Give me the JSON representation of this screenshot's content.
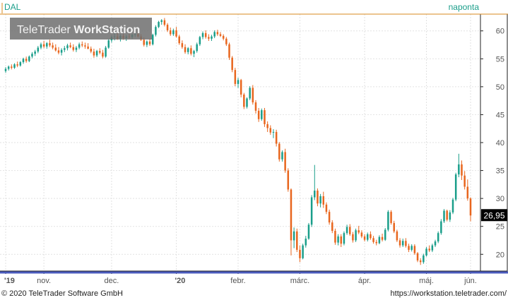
{
  "chart_data": {
    "type": "candlestick",
    "symbol": "DAL",
    "interval": "naponta",
    "watermark": {
      "brand": "TeleTrader",
      "product": "WorkStation"
    },
    "last_price_label": "26,95",
    "ylim": [
      17,
      63
    ],
    "y_ticks": [
      20,
      25,
      30,
      35,
      40,
      45,
      50,
      55,
      60
    ],
    "x_ticks": [
      "'19",
      "nov.",
      "dec.",
      "'20",
      "febr.",
      "márc.",
      "ápr.",
      "máj.",
      "jún."
    ],
    "colors": {
      "up": "#1a9e8a",
      "down": "#e8661e",
      "last": "#000000",
      "accent": "#d88a1c"
    },
    "candles": [
      [
        52.8,
        53.5,
        52.5,
        53.2
      ],
      [
        53.2,
        53.8,
        52.9,
        53.6
      ],
      [
        53.6,
        54.0,
        53.1,
        53.4
      ],
      [
        53.4,
        54.2,
        53.2,
        54.0
      ],
      [
        54.0,
        54.5,
        53.5,
        53.8
      ],
      [
        53.8,
        54.6,
        53.6,
        54.4
      ],
      [
        54.4,
        55.2,
        54.1,
        55.0
      ],
      [
        55.0,
        55.4,
        54.3,
        54.6
      ],
      [
        54.6,
        55.6,
        54.4,
        55.4
      ],
      [
        55.4,
        56.2,
        55.1,
        55.9
      ],
      [
        55.9,
        56.6,
        55.5,
        56.3
      ],
      [
        56.3,
        57.3,
        56.0,
        57.0
      ],
      [
        57.0,
        57.9,
        56.7,
        57.6
      ],
      [
        57.6,
        58.2,
        56.9,
        57.2
      ],
      [
        57.2,
        58.0,
        56.8,
        57.8
      ],
      [
        57.8,
        58.4,
        57.1,
        57.4
      ],
      [
        57.4,
        57.9,
        56.7,
        57.0
      ],
      [
        57.0,
        57.6,
        56.3,
        56.5
      ],
      [
        56.5,
        57.1,
        55.8,
        56.1
      ],
      [
        56.1,
        56.9,
        55.6,
        56.6
      ],
      [
        56.6,
        57.3,
        56.2,
        56.9
      ],
      [
        56.9,
        57.7,
        56.5,
        57.4
      ],
      [
        57.4,
        57.9,
        56.9,
        57.1
      ],
      [
        57.1,
        57.6,
        56.3,
        56.6
      ],
      [
        56.6,
        57.3,
        56.2,
        57.0
      ],
      [
        57.0,
        57.9,
        56.7,
        57.6
      ],
      [
        57.6,
        58.1,
        57.1,
        57.4
      ],
      [
        57.4,
        57.9,
        56.8,
        57.2
      ],
      [
        57.2,
        57.8,
        56.7,
        56.8
      ],
      [
        56.8,
        57.2,
        56.0,
        56.3
      ],
      [
        56.3,
        56.8,
        55.2,
        55.6
      ],
      [
        55.6,
        56.6,
        55.3,
        56.4
      ],
      [
        56.4,
        56.9,
        55.8,
        56.1
      ],
      [
        56.1,
        56.6,
        55.1,
        55.4
      ],
      [
        55.4,
        57.3,
        55.2,
        57.0
      ],
      [
        57.0,
        58.6,
        56.8,
        58.3
      ],
      [
        58.3,
        59.2,
        57.9,
        58.9
      ],
      [
        58.9,
        59.6,
        58.3,
        59.0
      ],
      [
        59.0,
        59.6,
        58.4,
        58.6
      ],
      [
        58.6,
        59.4,
        58.1,
        59.1
      ],
      [
        59.1,
        59.5,
        58.4,
        58.7
      ],
      [
        58.7,
        59.3,
        58.2,
        59.0
      ],
      [
        59.0,
        59.5,
        58.6,
        58.9
      ],
      [
        58.9,
        59.5,
        58.6,
        59.3
      ],
      [
        59.3,
        59.8,
        58.9,
        59.4
      ],
      [
        59.4,
        59.9,
        58.8,
        59.0
      ],
      [
        59.0,
        59.4,
        58.2,
        58.4
      ],
      [
        58.4,
        58.8,
        57.2,
        57.5
      ],
      [
        57.5,
        58.3,
        57.1,
        58.1
      ],
      [
        58.1,
        58.6,
        57.3,
        57.6
      ],
      [
        57.6,
        59.5,
        57.4,
        59.3
      ],
      [
        59.3,
        61.0,
        59.0,
        60.7
      ],
      [
        60.7,
        61.8,
        60.5,
        61.6
      ],
      [
        61.6,
        62.1,
        61.1,
        61.9
      ],
      [
        61.9,
        62.3,
        60.8,
        61.1
      ],
      [
        61.1,
        61.4,
        59.8,
        60.1
      ],
      [
        60.1,
        60.6,
        59.1,
        59.4
      ],
      [
        59.4,
        60.4,
        59.1,
        60.1
      ],
      [
        60.1,
        60.7,
        58.8,
        59.0
      ],
      [
        59.0,
        59.3,
        57.5,
        57.8
      ],
      [
        57.8,
        58.3,
        56.8,
        57.1
      ],
      [
        57.1,
        57.6,
        55.9,
        56.2
      ],
      [
        56.2,
        57.1,
        55.8,
        56.9
      ],
      [
        56.9,
        57.4,
        55.6,
        55.9
      ],
      [
        55.9,
        56.6,
        55.3,
        56.4
      ],
      [
        56.4,
        57.9,
        56.1,
        57.6
      ],
      [
        57.6,
        59.1,
        57.3,
        58.9
      ],
      [
        58.9,
        59.9,
        58.5,
        59.6
      ],
      [
        59.6,
        60.1,
        58.6,
        58.9
      ],
      [
        58.9,
        59.4,
        58.2,
        58.6
      ],
      [
        58.6,
        59.3,
        58.2,
        59.0
      ],
      [
        59.0,
        60.1,
        58.7,
        59.8
      ],
      [
        59.8,
        60.2,
        59.1,
        59.4
      ],
      [
        59.4,
        59.8,
        58.9,
        59.1
      ],
      [
        59.1,
        59.4,
        58.3,
        58.6
      ],
      [
        58.6,
        58.9,
        57.3,
        57.6
      ],
      [
        57.6,
        57.9,
        54.8,
        55.2
      ],
      [
        55.2,
        55.5,
        52.6,
        53.0
      ],
      [
        53.0,
        53.4,
        50.1,
        50.5
      ],
      [
        50.5,
        51.6,
        49.8,
        51.2
      ],
      [
        51.2,
        51.4,
        48.1,
        48.6
      ],
      [
        48.6,
        48.9,
        46.0,
        46.4
      ],
      [
        46.4,
        48.1,
        46.1,
        47.9
      ],
      [
        47.9,
        50.1,
        47.6,
        49.8
      ],
      [
        49.8,
        50.3,
        46.8,
        47.2
      ],
      [
        47.2,
        47.6,
        45.2,
        45.7
      ],
      [
        45.7,
        46.2,
        43.7,
        44.2
      ],
      [
        44.2,
        46.1,
        43.9,
        45.8
      ],
      [
        45.8,
        46.2,
        42.8,
        43.3
      ],
      [
        43.3,
        43.8,
        41.9,
        42.6
      ],
      [
        42.6,
        43.1,
        41.4,
        41.8
      ],
      [
        41.8,
        42.4,
        40.8,
        41.9
      ],
      [
        41.9,
        42.3,
        39.3,
        39.8
      ],
      [
        39.8,
        40.1,
        36.6,
        37.0
      ],
      [
        37.0,
        38.6,
        36.6,
        38.3
      ],
      [
        38.3,
        38.9,
        34.6,
        35.0
      ],
      [
        35.0,
        35.4,
        31.2,
        31.6
      ],
      [
        31.6,
        31.8,
        19.8,
        22.5
      ],
      [
        22.5,
        24.8,
        21.1,
        24.1
      ],
      [
        24.1,
        24.6,
        20.4,
        20.8
      ],
      [
        20.8,
        21.6,
        18.6,
        19.3
      ],
      [
        19.3,
        21.9,
        19.1,
        21.6
      ],
      [
        21.6,
        23.3,
        21.2,
        22.8
      ],
      [
        22.8,
        25.6,
        22.6,
        25.3
      ],
      [
        25.3,
        30.6,
        24.9,
        30.2
      ],
      [
        30.2,
        36.0,
        29.7,
        31.4
      ],
      [
        31.4,
        31.8,
        28.6,
        29.1
      ],
      [
        29.1,
        30.8,
        28.4,
        30.4
      ],
      [
        30.4,
        31.2,
        28.3,
        28.9
      ],
      [
        28.9,
        29.3,
        27.2,
        27.6
      ],
      [
        27.6,
        28.0,
        25.3,
        25.7
      ],
      [
        25.7,
        26.1,
        23.8,
        24.2
      ],
      [
        24.2,
        24.6,
        21.7,
        22.1
      ],
      [
        22.1,
        23.6,
        21.6,
        23.2
      ],
      [
        23.2,
        23.6,
        21.3,
        21.9
      ],
      [
        21.9,
        24.1,
        21.6,
        23.8
      ],
      [
        23.8,
        25.3,
        23.5,
        24.9
      ],
      [
        24.9,
        25.4,
        23.3,
        23.6
      ],
      [
        23.6,
        24.0,
        22.1,
        22.5
      ],
      [
        22.5,
        24.6,
        22.2,
        24.3
      ],
      [
        24.3,
        25.1,
        23.6,
        23.9
      ],
      [
        23.9,
        24.3,
        22.9,
        23.2
      ],
      [
        23.2,
        23.6,
        22.3,
        22.6
      ],
      [
        22.6,
        23.9,
        22.3,
        23.6
      ],
      [
        23.6,
        24.1,
        22.6,
        22.9
      ],
      [
        22.9,
        23.3,
        21.9,
        22.2
      ],
      [
        22.2,
        22.6,
        21.6,
        22.0
      ],
      [
        22.0,
        23.4,
        21.8,
        23.1
      ],
      [
        23.1,
        23.7,
        22.3,
        22.6
      ],
      [
        22.6,
        24.7,
        22.4,
        24.4
      ],
      [
        24.4,
        27.9,
        24.1,
        27.6
      ],
      [
        27.6,
        27.9,
        25.3,
        25.6
      ],
      [
        25.6,
        26.0,
        23.8,
        24.1
      ],
      [
        24.1,
        24.4,
        22.2,
        22.5
      ],
      [
        22.5,
        22.9,
        21.2,
        21.6
      ],
      [
        21.6,
        22.8,
        21.3,
        22.4
      ],
      [
        22.4,
        22.9,
        21.2,
        21.5
      ],
      [
        21.5,
        21.9,
        20.4,
        20.8
      ],
      [
        20.8,
        21.8,
        20.5,
        21.5
      ],
      [
        21.5,
        21.8,
        19.9,
        20.2
      ],
      [
        20.2,
        20.4,
        18.6,
        18.9
      ],
      [
        18.9,
        19.3,
        18.1,
        18.6
      ],
      [
        18.6,
        20.1,
        18.3,
        19.8
      ],
      [
        19.8,
        21.3,
        19.6,
        21.0
      ],
      [
        21.0,
        21.6,
        20.4,
        20.7
      ],
      [
        20.7,
        21.9,
        20.4,
        21.6
      ],
      [
        21.6,
        22.6,
        21.3,
        22.3
      ],
      [
        22.3,
        24.1,
        22.0,
        23.8
      ],
      [
        23.8,
        26.3,
        23.5,
        25.9
      ],
      [
        25.9,
        28.1,
        25.6,
        27.8
      ],
      [
        27.8,
        28.0,
        25.9,
        26.2
      ],
      [
        26.2,
        27.9,
        25.8,
        27.5
      ],
      [
        27.5,
        30.1,
        27.2,
        29.8
      ],
      [
        29.8,
        34.6,
        29.5,
        34.3
      ],
      [
        34.3,
        38.0,
        33.8,
        36.1
      ],
      [
        36.1,
        36.8,
        33.3,
        34.1
      ],
      [
        34.1,
        34.9,
        31.6,
        32.1
      ],
      [
        32.1,
        33.4,
        29.6,
        30.0
      ],
      [
        30.0,
        30.2,
        25.9,
        26.95
      ]
    ]
  }
}
